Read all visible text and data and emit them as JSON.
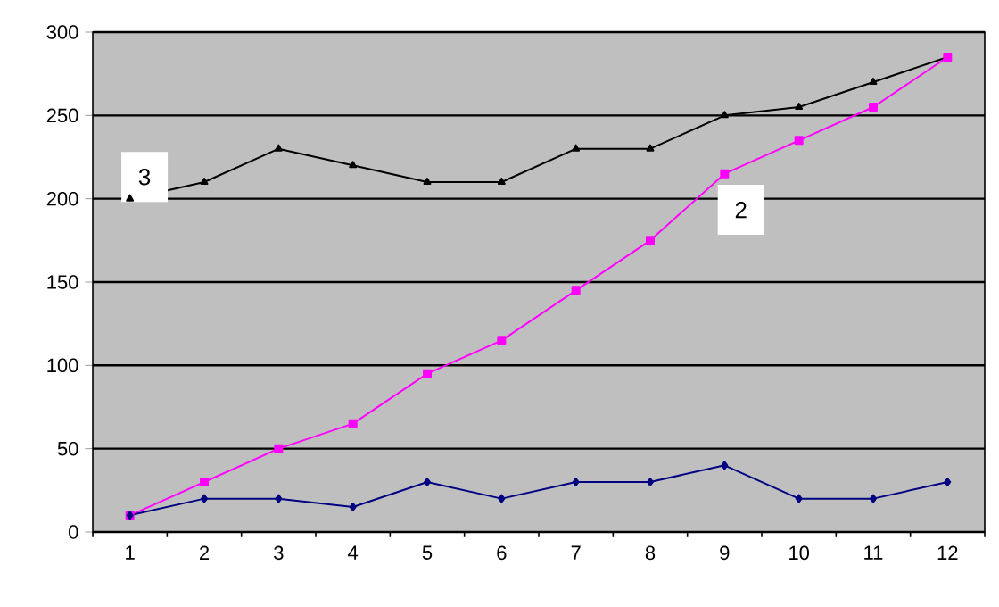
{
  "chart_data": {
    "type": "line",
    "categories": [
      "1",
      "2",
      "3",
      "4",
      "5",
      "6",
      "7",
      "8",
      "9",
      "10",
      "11",
      "12"
    ],
    "series": [
      {
        "name": "3",
        "color": "#000000",
        "marker": "triangle",
        "values": [
          200,
          210,
          230,
          220,
          210,
          210,
          230,
          230,
          250,
          255,
          270,
          285
        ]
      },
      {
        "name": "2",
        "color": "#ff00ff",
        "marker": "square",
        "values": [
          10,
          30,
          50,
          65,
          95,
          115,
          145,
          175,
          215,
          235,
          255,
          285
        ]
      },
      {
        "color": "#000080",
        "marker": "diamond",
        "values": [
          10,
          20,
          20,
          15,
          30,
          20,
          30,
          30,
          40,
          20,
          20,
          30
        ]
      }
    ],
    "ylim": [
      0,
      300
    ],
    "yticks": [
      0,
      50,
      100,
      150,
      200,
      250,
      300
    ],
    "grid": "y"
  }
}
